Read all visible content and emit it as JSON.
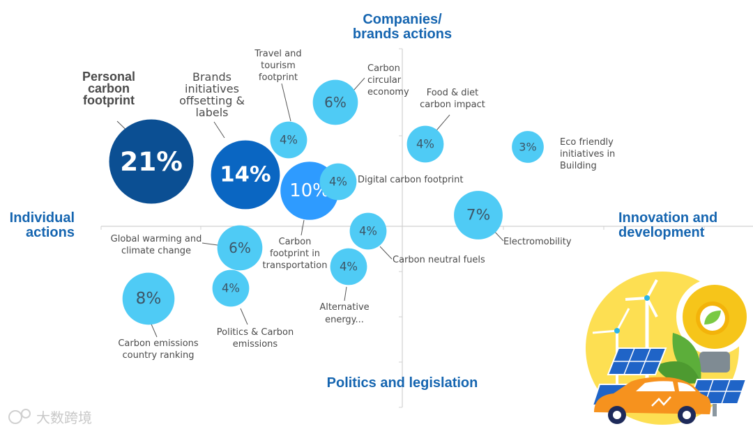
{
  "chart_data": {
    "type": "bubble-quadrant",
    "axis_titles": {
      "top": [
        "Companies/",
        "brands actions"
      ],
      "bottom": "Politics and legislation",
      "left": [
        "Individual",
        "actions"
      ],
      "right": [
        "Innovation and",
        "development"
      ]
    },
    "bubbles": [
      {
        "value": 21,
        "label": "21%",
        "name": "Personal carbon footprint",
        "color": "#0b4f93"
      },
      {
        "value": 14,
        "label": "14%",
        "name": "Brands initiatives offsetting & labels",
        "color": "#0a66c2"
      },
      {
        "value": 10,
        "label": "10%",
        "name": "Carbon footprint in transportation",
        "color": "#2e9bff"
      },
      {
        "value": 8,
        "label": "8%",
        "name": "Carbon emissions country ranking",
        "color": "#4fcbf5"
      },
      {
        "value": 7,
        "label": "7%",
        "name": "Electromobility",
        "color": "#4fcbf5"
      },
      {
        "value": 6,
        "label": "6%",
        "name": "Carbon circular economy",
        "color": "#4fcbf5"
      },
      {
        "value": 6,
        "label": "6%",
        "name": "Global warming and climate change",
        "color": "#4fcbf5"
      },
      {
        "value": 4,
        "label": "4%",
        "name": "Travel and tourism footprint",
        "color": "#4fcbf5"
      },
      {
        "value": 4,
        "label": "4%",
        "name": "Digital carbon footprint",
        "color": "#4fcbf5"
      },
      {
        "value": 4,
        "label": "4%",
        "name": "Food & diet carbon impact",
        "color": "#4fcbf5"
      },
      {
        "value": 4,
        "label": "4%",
        "name": "Carbon neutral fuels",
        "color": "#4fcbf5"
      },
      {
        "value": 4,
        "label": "4%",
        "name": "Alternative energy...",
        "color": "#4fcbf5"
      },
      {
        "value": 4,
        "label": "4%",
        "name": "Politics & Carbon emissions",
        "color": "#4fcbf5"
      },
      {
        "value": 3,
        "label": "3%",
        "name": "Eco friendly initiatives in Building",
        "color": "#4fcbf5"
      }
    ]
  },
  "watermark": "大数跨境"
}
